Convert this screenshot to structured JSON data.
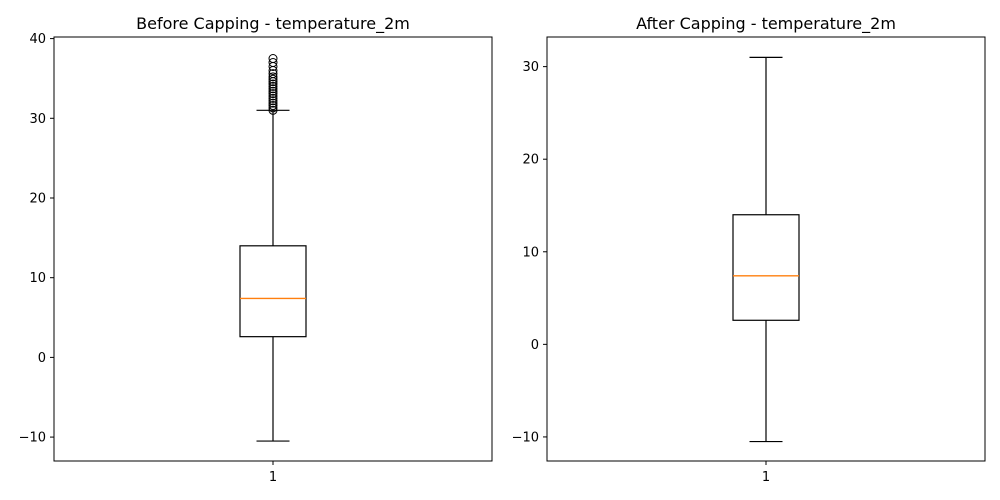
{
  "chart_data": [
    {
      "type": "box",
      "title": "Before Capping - temperature_2m",
      "xlabel": "",
      "ylabel": "",
      "categories": [
        "1"
      ],
      "ylim": [
        -13,
        40.2
      ],
      "yticks": [
        -10,
        0,
        10,
        20,
        30,
        40
      ],
      "ytick_labels": [
        "−10",
        "0",
        "10",
        "20",
        "30",
        "40"
      ],
      "box": {
        "whisker_low": -10.5,
        "q1": 2.6,
        "median": 7.4,
        "q3": 14.0,
        "whisker_high": 31.0
      },
      "outliers": [
        31.0,
        31.3,
        31.6,
        31.9,
        32.2,
        32.5,
        32.8,
        33.1,
        33.4,
        33.7,
        34.0,
        34.3,
        34.6,
        34.9,
        35.2,
        35.6,
        36.0,
        36.5,
        37.0,
        37.5
      ],
      "colors": {
        "box": "#000000",
        "median": "#ff7f0e"
      }
    },
    {
      "type": "box",
      "title": "After Capping - temperature_2m",
      "xlabel": "",
      "ylabel": "",
      "categories": [
        "1"
      ],
      "ylim": [
        -12.6,
        33.2
      ],
      "yticks": [
        -10,
        0,
        10,
        20,
        30
      ],
      "ytick_labels": [
        "−10",
        "0",
        "10",
        "20",
        "30"
      ],
      "box": {
        "whisker_low": -10.5,
        "q1": 2.6,
        "median": 7.4,
        "q3": 14.0,
        "whisker_high": 31.0
      },
      "outliers": [],
      "colors": {
        "box": "#000000",
        "median": "#ff7f0e"
      }
    }
  ]
}
